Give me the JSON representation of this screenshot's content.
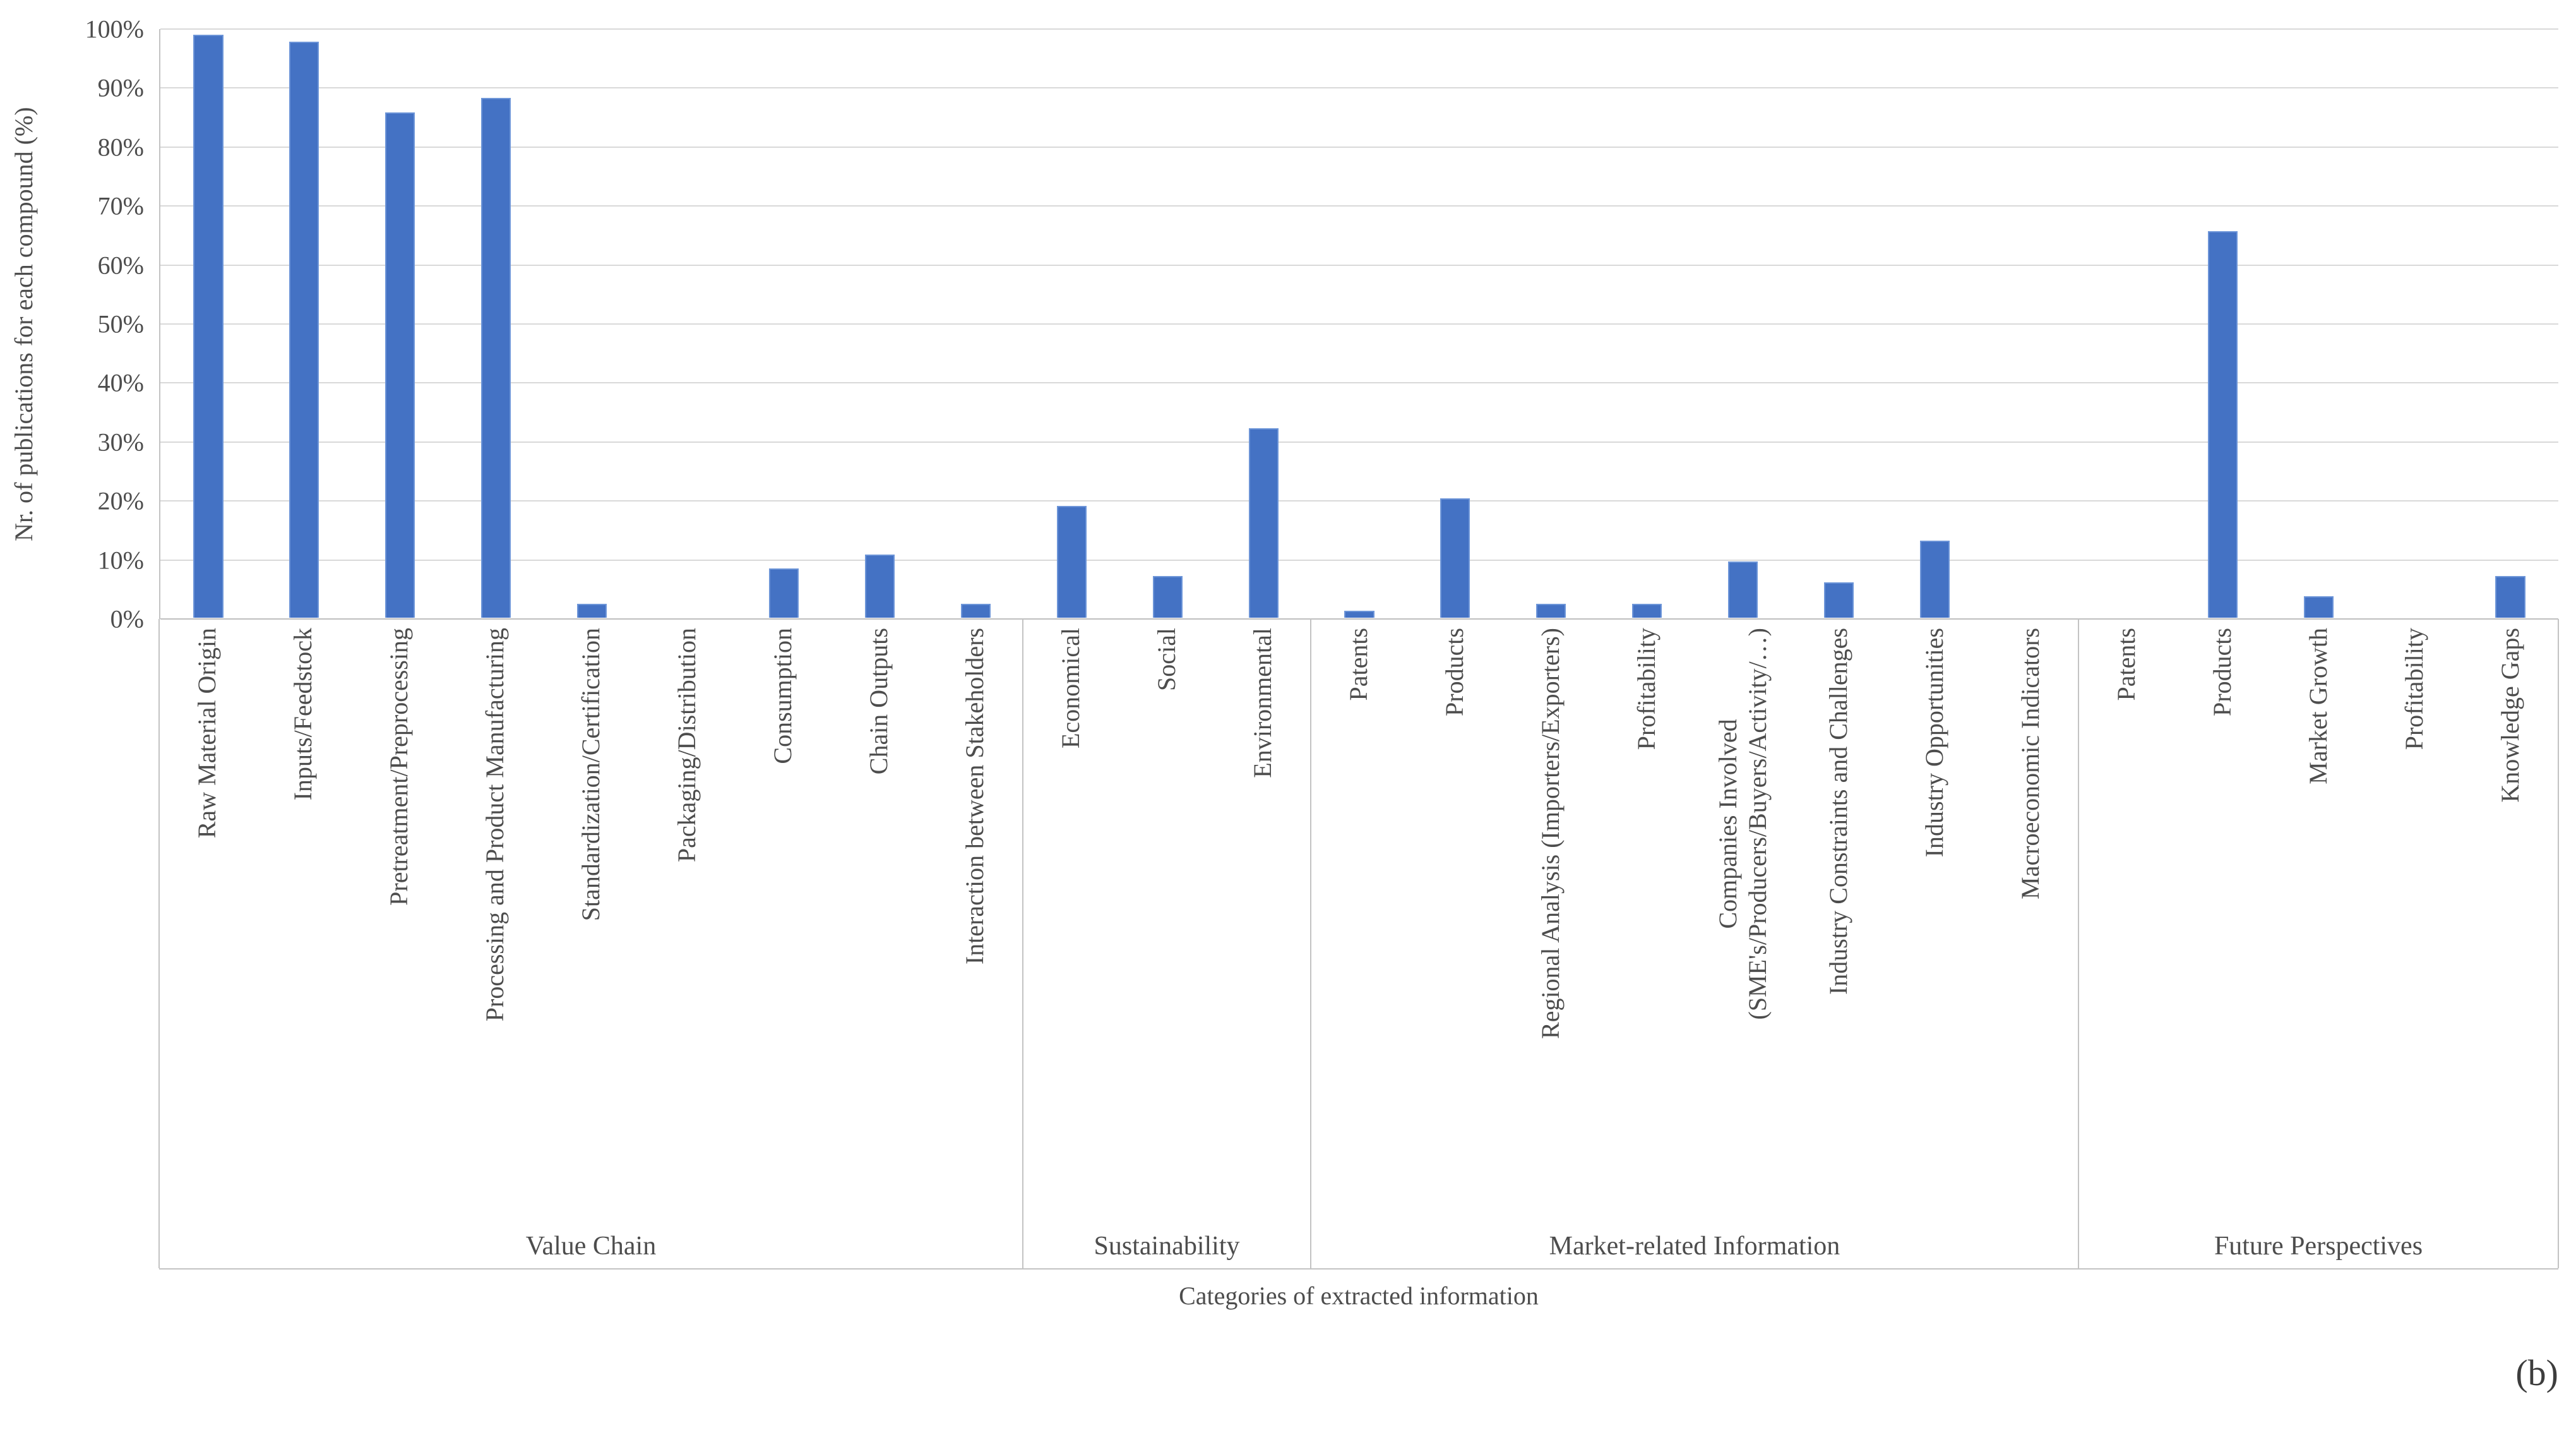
{
  "figure": {
    "panel_label": "(b)"
  },
  "chart_data": {
    "type": "bar",
    "title": "",
    "ylabel": "Nr. of publications for each compound (%)",
    "xlabel": "Categories of extracted information",
    "ylim": [
      0,
      100
    ],
    "ytick_step": 10,
    "yticks": [
      "100%",
      "90%",
      "80%",
      "70%",
      "60%",
      "50%",
      "40%",
      "30%",
      "20%",
      "10%",
      "0%"
    ],
    "grid": "horizontal",
    "legend": "none",
    "bar_color": "#4472C4",
    "gridline_color": "#D9D9D9",
    "axis_color": "#C3C3C3",
    "groups": [
      {
        "label": "Value Chain",
        "items": [
          {
            "label": "Raw Material Origin",
            "value": 98.8
          },
          {
            "label": "Inputs/Feedstock",
            "value": 97.6
          },
          {
            "label": "Pretreatment/Preprocessing",
            "value": 85.7
          },
          {
            "label": "Processing and Product Manufacturing",
            "value": 88.1
          },
          {
            "label": "Standardization/Certification",
            "value": 2.4
          },
          {
            "label": "Packaging/Distribution",
            "value": 0
          },
          {
            "label": "Consumption",
            "value": 8.3
          },
          {
            "label": "Chain Outputs",
            "value": 10.7
          },
          {
            "label": "Interaction between Stakeholders",
            "value": 2.4
          }
        ]
      },
      {
        "label": "Sustainability",
        "items": [
          {
            "label": "Economical",
            "value": 19.0
          },
          {
            "label": "Social",
            "value": 7.1
          },
          {
            "label": "Environmental",
            "value": 32.1
          }
        ]
      },
      {
        "label": "Market-related Information",
        "items": [
          {
            "label": "Patents",
            "value": 1.2
          },
          {
            "label": "Products",
            "value": 20.2
          },
          {
            "label": "Regional Analysis (Importers/Exporters)",
            "value": 2.4
          },
          {
            "label": "Profitability",
            "value": 2.4
          },
          {
            "label": "Companies Involved\n(SME's/Producers/Buyers/Activity/…)",
            "value": 9.5
          },
          {
            "label": "Industry Constraints and Challenges",
            "value": 6.0
          },
          {
            "label": "Industry Opportunities",
            "value": 13.1
          },
          {
            "label": "Macroeconomic Indicators",
            "value": 0
          }
        ]
      },
      {
        "label": "Future Perspectives",
        "items": [
          {
            "label": "Patents",
            "value": 0
          },
          {
            "label": "Products",
            "value": 65.5
          },
          {
            "label": "Market Growth",
            "value": 3.6
          },
          {
            "label": "Profitability",
            "value": 0
          },
          {
            "label": "Knowledge Gaps",
            "value": 7.1
          }
        ]
      }
    ]
  }
}
